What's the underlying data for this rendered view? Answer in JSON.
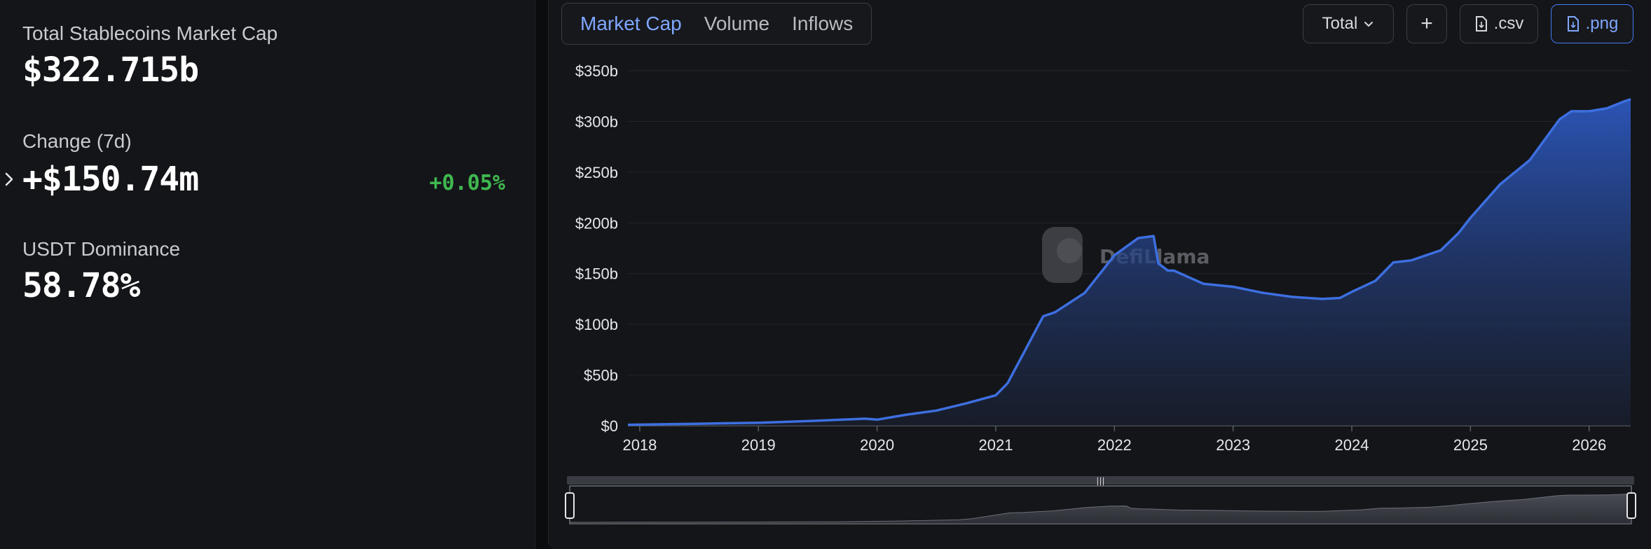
{
  "summary": {
    "total_label": "Total Stablecoins Market Cap",
    "total_value": "$322.715b",
    "change_label": "Change (7d)",
    "change_value": "+$150.74m",
    "change_pct": "+0.05%",
    "dominance_label": "USDT Dominance",
    "dominance_value": "58.78%"
  },
  "tabs": [
    {
      "label": "Market Cap",
      "active": true
    },
    {
      "label": "Volume",
      "active": false
    },
    {
      "label": "Inflows",
      "active": false
    }
  ],
  "toolbar": {
    "select_value": "Total",
    "add_label": "+",
    "csv_label": ".csv",
    "png_label": ".png"
  },
  "watermark": "DefiLlama",
  "colors": {
    "accent": "#3f7bf0",
    "line": "#3d6fe0",
    "positive": "#3fb950",
    "panel": "#141518"
  },
  "chart_data": {
    "type": "area",
    "title": "",
    "xlabel": "",
    "ylabel": "",
    "ylim": [
      0,
      350
    ],
    "y_ticks": [
      "$0",
      "$50b",
      "$100b",
      "$150b",
      "$200b",
      "$250b",
      "$300b",
      "$350b"
    ],
    "x_ticks": [
      "2018",
      "2019",
      "2020",
      "2021",
      "2022",
      "2023",
      "2024",
      "2025",
      "2026"
    ],
    "x_range": [
      2017.9,
      2026.35
    ],
    "series": [
      {
        "unit": "billion USD",
        "x": [
          2017.9,
          2018.5,
          2019.0,
          2019.5,
          2019.9,
          2020.0,
          2020.25,
          2020.5,
          2020.75,
          2021.0,
          2021.1,
          2021.25,
          2021.4,
          2021.5,
          2021.75,
          2022.0,
          2022.2,
          2022.33,
          2022.37,
          2022.45,
          2022.5,
          2022.75,
          2023.0,
          2023.25,
          2023.5,
          2023.75,
          2023.9,
          2024.0,
          2024.2,
          2024.35,
          2024.5,
          2024.75,
          2024.9,
          2025.0,
          2025.25,
          2025.5,
          2025.75,
          2025.85,
          2026.0,
          2026.15,
          2026.3,
          2026.35
        ],
        "y": [
          1,
          2,
          3,
          5,
          7,
          6,
          11,
          15,
          22,
          30,
          42,
          75,
          108,
          112,
          131,
          168,
          185,
          187,
          160,
          153,
          153,
          140,
          137,
          131,
          127,
          125,
          126,
          132,
          143,
          161,
          163,
          173,
          190,
          205,
          238,
          262,
          302,
          310,
          310,
          313,
          320,
          322
        ]
      }
    ]
  }
}
